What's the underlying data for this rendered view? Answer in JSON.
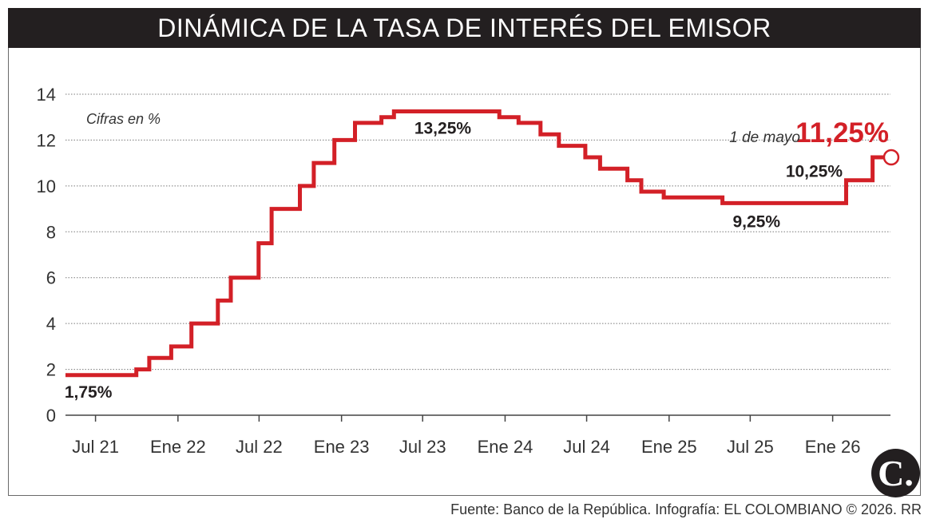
{
  "title": "DINÁMICA DE LA TASA DE INTERÉS DEL EMISOR",
  "source": "Fuente: Banco de la República. Infografía: EL COLOMBIANO © 2026. RR",
  "logo_letter": "C.",
  "colors": {
    "line": "#d32027",
    "title_bg": "#231f20",
    "text": "#231f20",
    "grid": "#7a7a7a"
  },
  "chart_data": {
    "type": "line",
    "step": true,
    "title": "DINÁMICA DE LA TASA DE INTERÉS DEL EMISOR",
    "unit_note": "Cifras en %",
    "xlabel": "",
    "ylabel": "",
    "ylim": [
      0,
      14
    ],
    "yticks": [
      0,
      2,
      4,
      6,
      8,
      10,
      12,
      14
    ],
    "xlim": [
      "2021-04-25",
      "2026-05-10"
    ],
    "xticks": [
      {
        "date": "2021-07-01",
        "label": "Jul 21"
      },
      {
        "date": "2022-01-01",
        "label": "Ene 22"
      },
      {
        "date": "2022-07-01",
        "label": "Jul 22"
      },
      {
        "date": "2023-01-01",
        "label": "Ene 23"
      },
      {
        "date": "2023-07-01",
        "label": "Jul 23"
      },
      {
        "date": "2024-01-01",
        "label": "Ene 24"
      },
      {
        "date": "2024-07-01",
        "label": "Jul 24"
      },
      {
        "date": "2025-01-01",
        "label": "Ene 25"
      },
      {
        "date": "2025-07-01",
        "label": "Jul 25"
      },
      {
        "date": "2026-01-01",
        "label": "Ene 26"
      }
    ],
    "grid": true,
    "series": [
      {
        "points": [
          {
            "date": "2021-04-25",
            "value": 1.75
          },
          {
            "date": "2021-09-30",
            "value": 2.0
          },
          {
            "date": "2021-10-29",
            "value": 2.5
          },
          {
            "date": "2021-12-17",
            "value": 3.0
          },
          {
            "date": "2022-01-31",
            "value": 4.0
          },
          {
            "date": "2022-03-31",
            "value": 5.0
          },
          {
            "date": "2022-04-29",
            "value": 6.0
          },
          {
            "date": "2022-06-30",
            "value": 7.5
          },
          {
            "date": "2022-07-29",
            "value": 9.0
          },
          {
            "date": "2022-09-30",
            "value": 10.0
          },
          {
            "date": "2022-10-31",
            "value": 11.0
          },
          {
            "date": "2022-12-16",
            "value": 12.0
          },
          {
            "date": "2023-01-31",
            "value": 12.75
          },
          {
            "date": "2023-03-31",
            "value": 13.0
          },
          {
            "date": "2023-04-28",
            "value": 13.25
          },
          {
            "date": "2023-12-19",
            "value": 13.0
          },
          {
            "date": "2024-01-31",
            "value": 12.75
          },
          {
            "date": "2024-03-20",
            "value": 12.25
          },
          {
            "date": "2024-04-30",
            "value": 11.75
          },
          {
            "date": "2024-06-28",
            "value": 11.25
          },
          {
            "date": "2024-07-31",
            "value": 10.75
          },
          {
            "date": "2024-09-30",
            "value": 10.25
          },
          {
            "date": "2024-10-31",
            "value": 9.75
          },
          {
            "date": "2024-12-20",
            "value": 9.5
          },
          {
            "date": "2025-04-30",
            "value": 9.25
          },
          {
            "date": "2026-01-31",
            "value": 10.25
          },
          {
            "date": "2026-03-31",
            "value": 11.25
          },
          {
            "date": "2026-05-01",
            "value": 11.25
          }
        ]
      }
    ],
    "annotations": [
      {
        "text": "1,75%",
        "date": "2021-06-15",
        "value": 1.75
      },
      {
        "text": "13,25%",
        "date": "2023-08-15",
        "value": 13.25
      },
      {
        "text": "9,25%",
        "date": "2025-07-15",
        "value": 9.25
      },
      {
        "text": "10,25%",
        "date": "2026-02-10",
        "value": 10.25
      },
      {
        "prefix": "1 de mayo",
        "text": "11,25%",
        "date": "2026-05-01",
        "value": 11.25,
        "highlight": true
      }
    ]
  }
}
